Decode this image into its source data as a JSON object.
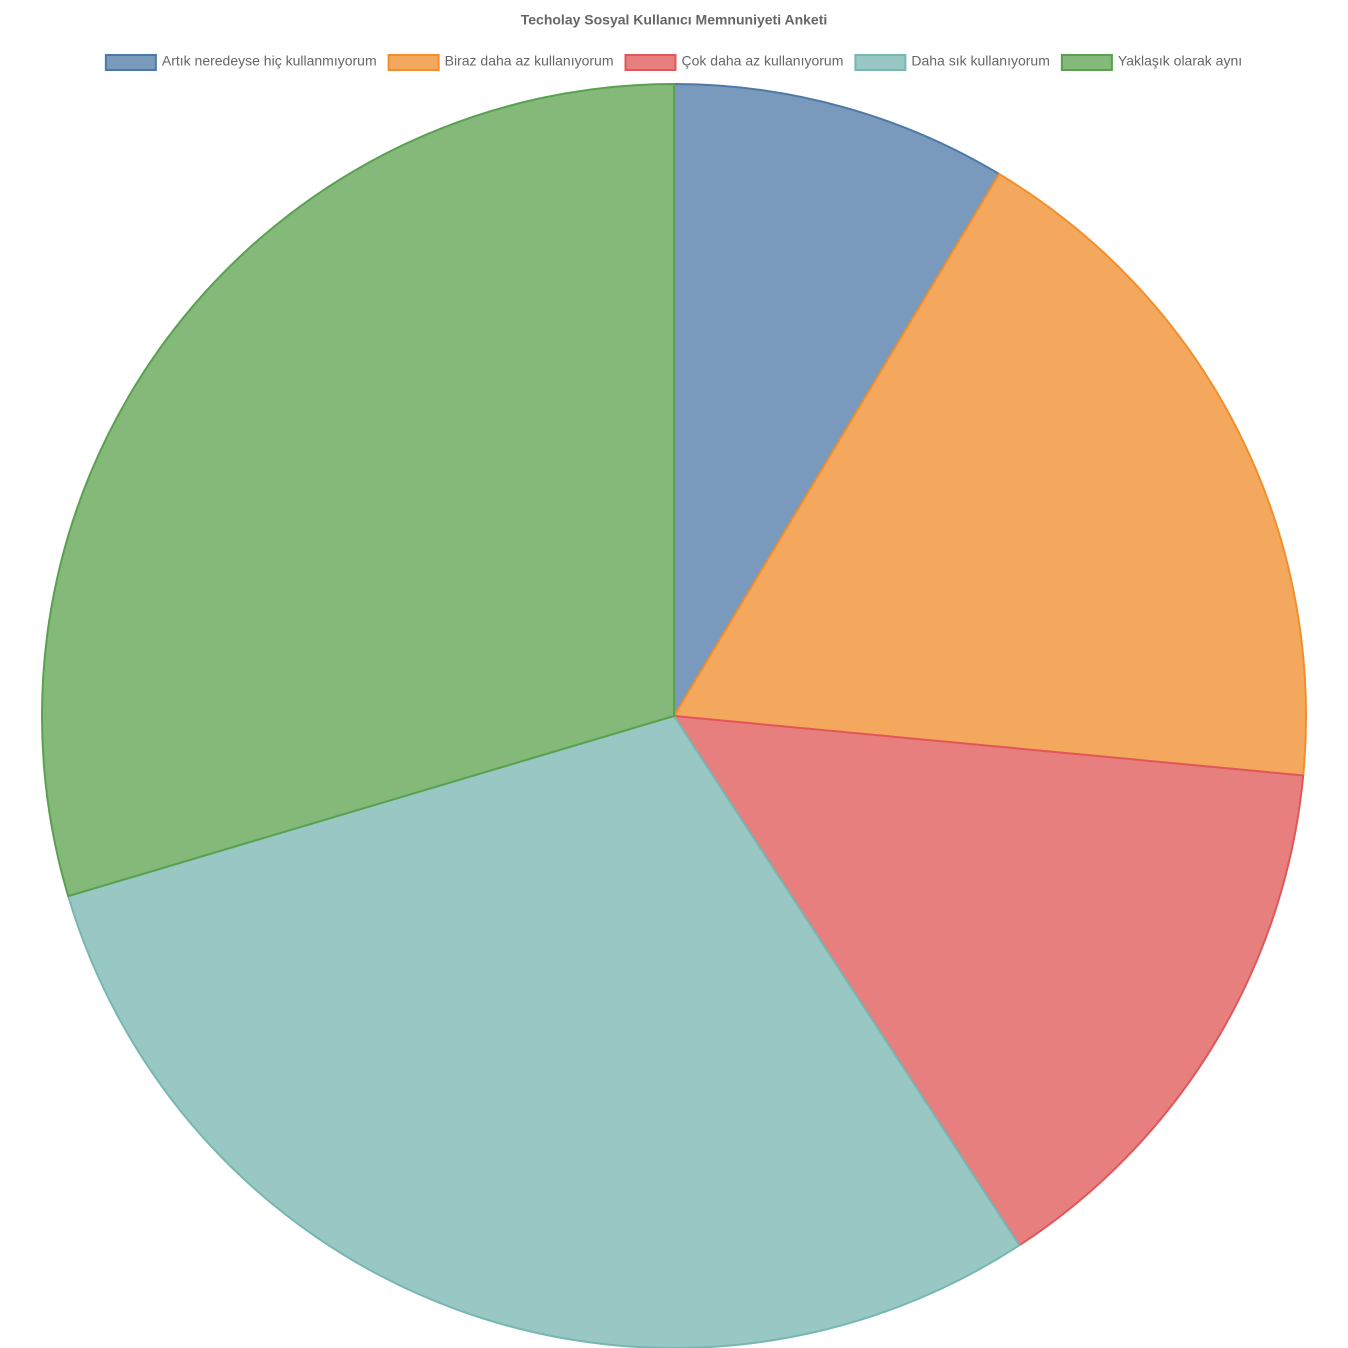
{
  "chart_data": {
    "type": "pie",
    "title": "Techolay Sosyal Kullanıcı Memnuniyeti Anketi",
    "categories": [
      "Artık neredeyse hiç kullanmıyorum",
      "Biraz daha az kullanıyorum",
      "Çok daha az kullanıyorum",
      "Daha sık kullanıyorum",
      "Yaklaşık olarak aynı"
    ],
    "values": [
      8.6,
      17.9,
      14.3,
      29.6,
      29.6
    ],
    "colors": [
      "#7a9abd",
      "#f4a85e",
      "#e87f7f",
      "#99c8c4",
      "#84b979"
    ],
    "border_colors": [
      "#4e79a7",
      "#f28e2b",
      "#e15759",
      "#76b7b2",
      "#59a14f"
    ],
    "legend": "top"
  }
}
